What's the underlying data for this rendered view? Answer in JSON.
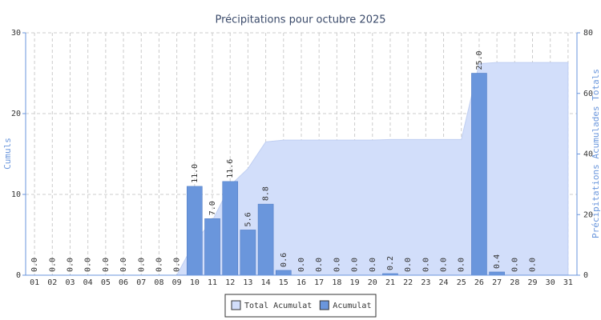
{
  "chart_data": {
    "type": "bar",
    "title": "Précipitations pour octubre 2025",
    "y_label": "Cumuls",
    "y2_label": "Précipitations Acumulades Totals",
    "categories": [
      "01",
      "02",
      "03",
      "04",
      "05",
      "06",
      "07",
      "08",
      "09",
      "10",
      "11",
      "12",
      "13",
      "14",
      "15",
      "16",
      "17",
      "18",
      "19",
      "20",
      "21",
      "22",
      "23",
      "24",
      "25",
      "26",
      "27",
      "28",
      "29",
      "30",
      "31"
    ],
    "series": [
      {
        "name": "Total Acumulat",
        "type": "area",
        "axis": "y2",
        "color": "#d2defa",
        "values": [
          0,
          0,
          0,
          0,
          0,
          0,
          0,
          0,
          0,
          11,
          18,
          29.6,
          35.2,
          44,
          44.6,
          44.6,
          44.6,
          44.6,
          44.6,
          44.6,
          44.8,
          44.8,
          44.8,
          44.8,
          44.8,
          69.8,
          70.2,
          70.2,
          70.2,
          70.2,
          70.2
        ]
      },
      {
        "name": "Acumulat",
        "type": "bar",
        "color": "#6a96dc",
        "values": [
          0,
          0,
          0,
          0,
          0,
          0,
          0,
          0,
          0,
          11,
          7,
          11.6,
          5.6,
          8.8,
          0.6,
          0,
          0,
          0,
          0,
          0,
          0.2,
          0,
          0,
          0,
          0,
          25,
          0.4,
          0,
          0,
          null,
          null
        ],
        "value_labels": [
          "0.0",
          "0.0",
          "0.0",
          "0.0",
          "0.0",
          "0.0",
          "0.0",
          "0.0",
          "0.0",
          "11.0",
          "7.0",
          "11.6",
          "5.6",
          "8.8",
          "0.6",
          "0.0",
          "0.0",
          "0.0",
          "0.0",
          "0.0",
          "0.2",
          "0.0",
          "0.0",
          "0.0",
          "0.0",
          "25.0",
          "0.4",
          "0.0",
          "0.0",
          null,
          null
        ]
      }
    ],
    "ylim": [
      0,
      30
    ],
    "yticks": [
      0,
      10,
      20,
      30
    ],
    "y2lim": [
      0,
      80
    ],
    "y2ticks": [
      0,
      20,
      40,
      60,
      80
    ],
    "grid": true,
    "legend": "bottom"
  }
}
